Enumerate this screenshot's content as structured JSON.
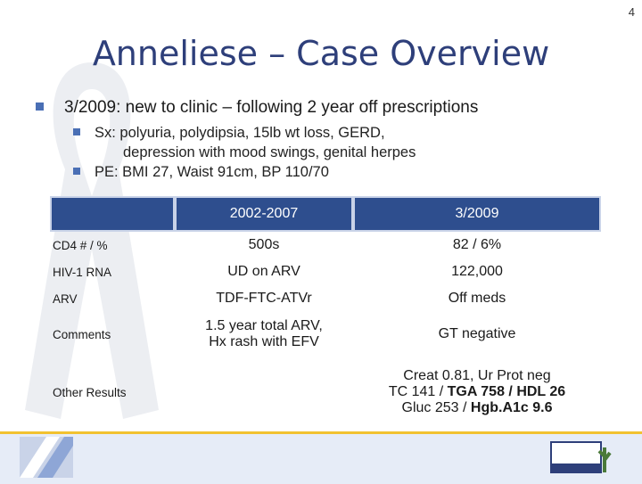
{
  "page_number": "4",
  "title": "Anneliese – Case Overview",
  "bullets": {
    "main": "3/2009: new to clinic – following 2 year off prescriptions",
    "sx_line1": "Sx: polyuria, polydipsia, 15lb wt loss, GERD,",
    "sx_line2": "depression with mood swings, genital herpes",
    "pe": "PE: BMI 27, Waist 91cm, BP 110/70"
  },
  "table": {
    "headers": [
      "",
      "2002-2007",
      "3/2009"
    ],
    "rows": [
      {
        "label": "CD4 # / %",
        "c1": "500s",
        "c2": "82 / 6%"
      },
      {
        "label": "HIV-1 RNA",
        "c1": "UD on ARV",
        "c2": "122,000"
      },
      {
        "label": "ARV",
        "c1": "TDF-FTC-ATVr",
        "c2": "Off meds"
      },
      {
        "label": "Comments",
        "c1_line1": "1.5 year total ARV,",
        "c1_line2": "Hx rash with EFV",
        "c2": "GT negative"
      },
      {
        "label": "Other Results",
        "c1": "",
        "c2_line1": "Creat 0.81, Ur Prot neg",
        "c2_line2_a": "TC 141 / ",
        "c2_line2_b": "TGA 758 / HDL 26",
        "c2_line3_a": "Gluc 253 / ",
        "c2_line3_b": "Hgb.A1c  9.6"
      }
    ]
  }
}
